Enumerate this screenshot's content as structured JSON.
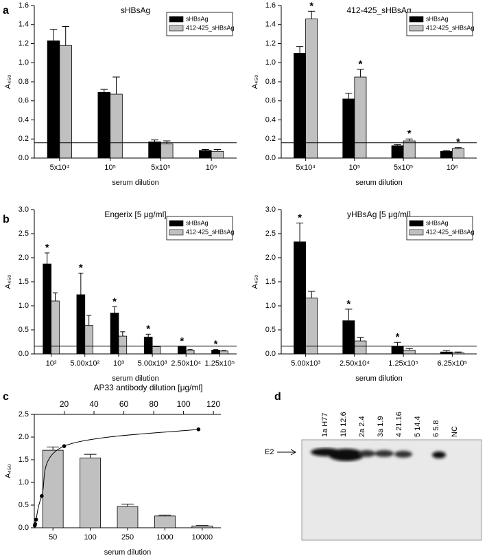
{
  "chart_data": [
    {
      "type": "bar",
      "panel_label": "a",
      "title": "sHBsAg",
      "xlabel": "serum dilution",
      "ylabel": "A₄₅₀",
      "categories": [
        "5x10⁴",
        "10⁵",
        "5x10⁵",
        "10⁶"
      ],
      "series": [
        {
          "name": "sHBsAg",
          "color": "#000000",
          "values": [
            1.23,
            0.69,
            0.17,
            0.08
          ],
          "errors": [
            0.12,
            0.03,
            0.02,
            0.01
          ]
        },
        {
          "name": "412-425_sHBsAg",
          "color": "#c0c0c0",
          "values": [
            1.18,
            0.67,
            0.15,
            0.07
          ],
          "errors": [
            0.2,
            0.18,
            0.03,
            0.02
          ]
        }
      ],
      "ylim": [
        0,
        1.6
      ],
      "yticks": [
        {
          "value": 0,
          "label": "0.0"
        },
        0.2,
        0.4,
        0.6,
        0.8,
        {
          "value": 1,
          "label": "1.0"
        },
        1.2,
        1.4,
        1.6
      ],
      "threshold": 0.16,
      "legend": "upper right"
    },
    {
      "type": "bar",
      "title": "412-425_sHBsAg",
      "xlabel": "serum dilution",
      "ylabel": "A₄₅₀",
      "categories": [
        "5x10⁴",
        "10⁵",
        "5x10⁵",
        "10⁶"
      ],
      "series": [
        {
          "name": "sHBsAg",
          "color": "#000000",
          "values": [
            1.1,
            0.62,
            0.13,
            0.07
          ],
          "errors": [
            0.07,
            0.06,
            0.01,
            0.01
          ]
        },
        {
          "name": "412-425_sHBsAg",
          "color": "#c0c0c0",
          "values": [
            1.46,
            0.85,
            0.18,
            0.1
          ],
          "errors": [
            0.08,
            0.08,
            0.02,
            0.01
          ],
          "markers": [
            "*",
            "*",
            "*",
            "*"
          ]
        }
      ],
      "ylim": [
        0,
        1.6
      ],
      "yticks": [
        {
          "value": 0,
          "label": "0.0"
        },
        0.2,
        0.4,
        0.6,
        0.8,
        {
          "value": 1,
          "label": "1.0"
        },
        1.2,
        1.4,
        1.6
      ],
      "threshold": 0.16,
      "legend": "upper right"
    },
    {
      "type": "bar",
      "panel_label": "b",
      "title": "Engerix [5 μg/ml]",
      "xlabel": "serum dilution",
      "ylabel": "A₄₅₀",
      "categories": [
        "10²",
        "5.00x10²",
        "10³",
        "5.00x10³",
        "2.50x10⁴",
        "1.25x10⁵"
      ],
      "series": [
        {
          "name": "sHBsAg",
          "color": "#000000",
          "values": [
            1.87,
            1.23,
            0.85,
            0.35,
            0.15,
            0.08
          ],
          "errors": [
            0.23,
            0.45,
            0.13,
            0.06,
            0.01,
            0.01
          ],
          "markers": [
            "*",
            "*",
            "*",
            "*",
            "*",
            "*"
          ]
        },
        {
          "name": "412-425_sHBsAg",
          "color": "#c0c0c0",
          "values": [
            1.1,
            0.59,
            0.37,
            0.15,
            0.08,
            0.06
          ],
          "errors": [
            0.17,
            0.21,
            0.09,
            0.01,
            0.01,
            0.01
          ]
        }
      ],
      "ylim": [
        0,
        3
      ],
      "yticks": [
        {
          "value": 0,
          "label": "0.0"
        },
        0.5,
        {
          "value": 1,
          "label": "1.0"
        },
        1.5,
        {
          "value": 2,
          "label": "2.0"
        },
        2.5,
        {
          "value": 3,
          "label": "3.0"
        }
      ],
      "threshold": 0.16,
      "legend": "upper right"
    },
    {
      "type": "bar",
      "title": "yHBsAg [5 μg/ml]",
      "xlabel": "serum dilution",
      "ylabel": "A₄₅₀",
      "categories": [
        "5.00x10³",
        "2.50x10⁴",
        "1.25x10⁵",
        "6.25x10⁵"
      ],
      "series": [
        {
          "name": "sHBsAg",
          "color": "#000000",
          "values": [
            2.33,
            0.69,
            0.16,
            0.04
          ],
          "errors": [
            0.39,
            0.24,
            0.08,
            0.03
          ],
          "markers": [
            "*",
            "*",
            "*",
            null
          ]
        },
        {
          "name": "412-425_sHBsAg",
          "color": "#c0c0c0",
          "values": [
            1.16,
            0.27,
            0.08,
            0.02
          ],
          "errors": [
            0.14,
            0.07,
            0.03,
            0.02
          ]
        }
      ],
      "ylim": [
        0,
        3
      ],
      "yticks": [
        {
          "value": 0,
          "label": "0.0"
        },
        0.5,
        {
          "value": 1,
          "label": "1.0"
        },
        1.5,
        {
          "value": 2,
          "label": "2.0"
        },
        2.5,
        {
          "value": 3,
          "label": "3.0"
        }
      ],
      "threshold": 0.16,
      "legend": "upper right"
    },
    {
      "type": "bar",
      "panel_label": "c",
      "xlabel": "serum dilution",
      "ylabel": "A₄₅₀",
      "categories": [
        "50",
        "100",
        "250",
        "1000",
        "10000"
      ],
      "series": [
        {
          "color": "#c0c0c0",
          "values": [
            1.71,
            1.54,
            0.47,
            0.26,
            0.04
          ],
          "errors": [
            0.07,
            0.08,
            0.05,
            0.02,
            0.01
          ]
        }
      ],
      "ylim": [
        0,
        2.5
      ],
      "yticks": [
        {
          "value": 0,
          "label": "0.0"
        },
        0.5,
        {
          "value": 1,
          "label": "1.0"
        },
        1.5,
        {
          "value": 2,
          "label": "2.0"
        },
        2.5
      ],
      "x2label": "AP33 antibody dilution [μg/ml]",
      "x2lim": [
        0,
        125
      ],
      "x2ticks": [
        20,
        40,
        60,
        80,
        100,
        120
      ],
      "curve": {
        "color": "#000000",
        "x": [
          0.3,
          0.6,
          1.2,
          5,
          20,
          110
        ],
        "y": [
          0.05,
          0.08,
          0.18,
          0.7,
          1.8,
          2.17
        ]
      }
    }
  ],
  "blot": {
    "panel_label": "d",
    "band_label": "E2",
    "lanes": [
      "1a H77",
      "1b 12.6",
      "2a 2.4",
      "3a 1.9",
      "4 21.16",
      "5 14.4",
      "6 5.8",
      "NC"
    ]
  }
}
